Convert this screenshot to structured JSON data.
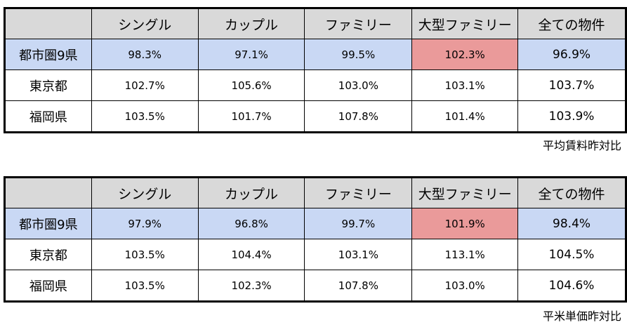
{
  "tables": [
    {
      "headers": [
        "",
        "シングル",
        "カップル",
        "ファミリー",
        "大型ファミリー",
        "全ての物件"
      ],
      "rows": [
        {
          "label": "都市圏9県",
          "values": [
            "98.3%",
            "97.1%",
            "99.5%",
            "102.3%",
            "96.9%"
          ]
        },
        {
          "label": "東京都",
          "values": [
            "102.7%",
            "105.6%",
            "103.0%",
            "103.1%",
            "103.7%"
          ]
        },
        {
          "label": "福岡県",
          "values": [
            "103.5%",
            "101.7%",
            "107.8%",
            "101.4%",
            "103.9%"
          ]
        }
      ],
      "caption": "平均賃料昨対比"
    },
    {
      "headers": [
        "",
        "シングル",
        "カップル",
        "ファミリー",
        "大型ファミリー",
        "全ての物件"
      ],
      "rows": [
        {
          "label": "都市圏9県",
          "values": [
            "97.9%",
            "96.8%",
            "99.7%",
            "101.9%",
            "98.4%"
          ]
        },
        {
          "label": "東京都",
          "values": [
            "103.5%",
            "104.4%",
            "103.1%",
            "113.1%",
            "104.5%"
          ]
        },
        {
          "label": "福岡県",
          "values": [
            "103.5%",
            "102.3%",
            "107.8%",
            "103.0%",
            "104.6%"
          ]
        }
      ],
      "caption": "平米単価昨対比"
    }
  ],
  "colors": {
    "header_bg": "#d9d9d9",
    "highlight_row": "#c9d8f4",
    "highlight_cell": "#ea9a9a"
  }
}
